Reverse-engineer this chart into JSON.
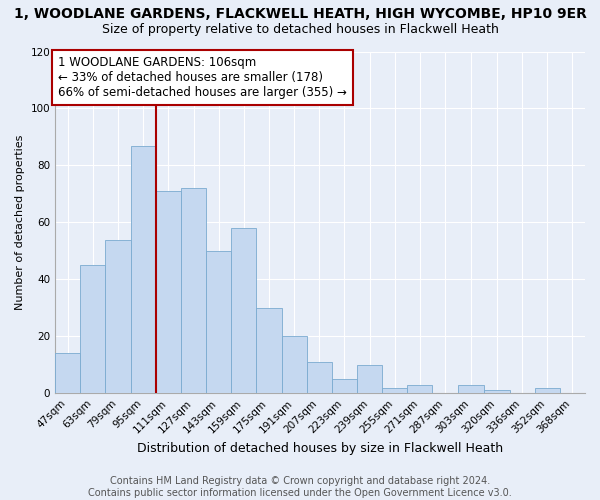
{
  "title": "1, WOODLANE GARDENS, FLACKWELL HEATH, HIGH WYCOMBE, HP10 9ER",
  "subtitle": "Size of property relative to detached houses in Flackwell Heath",
  "xlabel": "Distribution of detached houses by size in Flackwell Heath",
  "ylabel": "Number of detached properties",
  "bin_labels": [
    "47sqm",
    "63sqm",
    "79sqm",
    "95sqm",
    "111sqm",
    "127sqm",
    "143sqm",
    "159sqm",
    "175sqm",
    "191sqm",
    "207sqm",
    "223sqm",
    "239sqm",
    "255sqm",
    "271sqm",
    "287sqm",
    "303sqm",
    "320sqm",
    "336sqm",
    "352sqm",
    "368sqm"
  ],
  "bin_edges": [
    47,
    63,
    79,
    95,
    111,
    127,
    143,
    159,
    175,
    191,
    207,
    223,
    239,
    255,
    271,
    287,
    303,
    320,
    336,
    352,
    368,
    384
  ],
  "counts": [
    14,
    45,
    54,
    87,
    71,
    72,
    50,
    58,
    30,
    20,
    11,
    5,
    10,
    2,
    3,
    0,
    3,
    1,
    0,
    2,
    0
  ],
  "bar_color": "#c5d8f0",
  "bar_edge_color": "#7aaad0",
  "vline_x": 111,
  "vline_color": "#aa0000",
  "annotation_text": "1 WOODLANE GARDENS: 106sqm\n← 33% of detached houses are smaller (178)\n66% of semi-detached houses are larger (355) →",
  "annotation_box_color": "#ffffff",
  "annotation_box_edge_color": "#aa0000",
  "ylim": [
    0,
    120
  ],
  "yticks": [
    0,
    20,
    40,
    60,
    80,
    100,
    120
  ],
  "footer_text": "Contains HM Land Registry data © Crown copyright and database right 2024.\nContains public sector information licensed under the Open Government Licence v3.0.",
  "background_color": "#e8eef8",
  "grid_color": "#ffffff",
  "title_fontsize": 10,
  "subtitle_fontsize": 9,
  "xlabel_fontsize": 9,
  "ylabel_fontsize": 8,
  "tick_fontsize": 7.5,
  "footer_fontsize": 7,
  "annotation_fontsize": 8.5
}
